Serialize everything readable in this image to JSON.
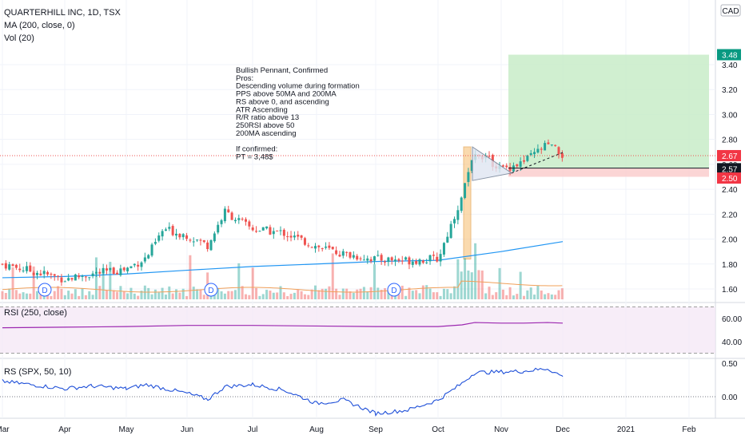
{
  "legend": {
    "symbol": "QUARTERHILL INC, 1D, TSX",
    "ma": "MA (200, close, 0)",
    "vol": "Vol (20)"
  },
  "currency": "CAD",
  "annotation": [
    "Bullish Pennant, Confirmed",
    "Pros:",
    "Descending volume during formation",
    "PPS above 50MA and 200MA",
    "RS above 0, and ascending",
    "ATR Ascending",
    "R/R ratio above 13",
    "250RSI above 50",
    "200MA ascending",
    "",
    "If confirmed:",
    "PT = 3,48$"
  ],
  "price_axis": {
    "ticks": [
      "3.40",
      "3.20",
      "3.00",
      "2.80",
      "2.60",
      "2.40",
      "2.20",
      "2.00",
      "1.80",
      "1.60"
    ],
    "badges": [
      {
        "label": "3.48",
        "value": 3.48,
        "color": "#089981"
      },
      {
        "label": "2.67",
        "value": 2.67,
        "color": "#f23645"
      },
      {
        "label": "2.57",
        "value": 2.57,
        "color": "#131722"
      },
      {
        "label": "2.50",
        "value": 2.5,
        "color": "#f23645"
      }
    ]
  },
  "rsi_panel": {
    "title": "RSI (250, close)",
    "ticks": [
      "60.00",
      "40.00"
    ]
  },
  "rs_panel": {
    "title": "RS (SPX, 50, 10)",
    "ticks": [
      "0.50",
      "0.00"
    ]
  },
  "time_axis": [
    "Mar",
    "Apr",
    "May",
    "Jun",
    "Jul",
    "Aug",
    "Sep",
    "Oct",
    "Nov",
    "Dec",
    "2021",
    "Feb"
  ],
  "dividend_marker": "D",
  "colors": {
    "up": "#26a69a",
    "down": "#ef5350",
    "ma": "#2196f3",
    "vol_ma": "#f0a05a",
    "rsi": "#9c27b0",
    "rs": "#1e4fd8",
    "target_zone": "#c8ecc8",
    "stop_zone": "#fbd0d0",
    "flagpole": "#f7c27a"
  },
  "chart_data": [
    {
      "type": "candlestick",
      "title": "QUARTERHILL INC, 1D, TSX",
      "ylim": [
        1.52,
        3.52
      ],
      "x": [
        "Mar",
        "Apr",
        "May",
        "Jun",
        "Jul",
        "Aug",
        "Sep",
        "Oct",
        "Nov",
        "Dec",
        "2021",
        "Feb"
      ],
      "price_path": [
        [
          "Mar",
          1.8
        ],
        [
          "Apr",
          1.68
        ],
        [
          "Apr-mid",
          1.72
        ],
        [
          "May",
          1.76
        ],
        [
          "May-mid",
          1.85
        ],
        [
          "May-late",
          2.08
        ],
        [
          "Jun",
          2.03
        ],
        [
          "Jun-mid",
          1.95
        ],
        [
          "Jun-late",
          2.22
        ],
        [
          "Jul",
          2.08
        ],
        [
          "Jul-mid",
          2.05
        ],
        [
          "Aug",
          1.94
        ],
        [
          "Aug-mid",
          1.88
        ],
        [
          "Sep",
          1.84
        ],
        [
          "Sep-mid",
          1.83
        ],
        [
          "Oct",
          1.84
        ],
        [
          "Oct-mid",
          2.35
        ],
        [
          "Oct-late",
          2.72
        ],
        [
          "Nov",
          2.56
        ],
        [
          "Nov-mid",
          2.62
        ],
        [
          "Nov-late",
          2.76
        ],
        [
          "Dec",
          2.67
        ]
      ],
      "moving_average_200": [
        [
          "Mar",
          1.69
        ],
        [
          "Apr",
          1.7
        ],
        [
          "May",
          1.72
        ],
        [
          "Jun",
          1.75
        ],
        [
          "Jul",
          1.78
        ],
        [
          "Aug",
          1.8
        ],
        [
          "Sep",
          1.82
        ],
        [
          "Oct",
          1.83
        ],
        [
          "Nov",
          1.9
        ],
        [
          "Dec",
          1.98
        ]
      ],
      "reference_lines": {
        "last_close": 2.67,
        "entry": 2.57,
        "stop": 2.5,
        "target": 3.48
      },
      "target_zone": [
        2.57,
        3.48
      ],
      "stop_zone": [
        2.5,
        2.57
      ]
    },
    {
      "type": "line",
      "title": "RSI (250, close)",
      "ylim": [
        30,
        70
      ],
      "bands": [
        70,
        30
      ],
      "values": [
        [
          "Mar",
          52
        ],
        [
          "Apr",
          52.5
        ],
        [
          "May",
          53
        ],
        [
          "Jun",
          54
        ],
        [
          "Jul",
          54
        ],
        [
          "Aug",
          53.5
        ],
        [
          "Sep",
          53
        ],
        [
          "Oct",
          53
        ],
        [
          "Oct-mid",
          54.5
        ],
        [
          "Oct-late",
          56.5
        ],
        [
          "Nov",
          56
        ],
        [
          "Nov-mid",
          56
        ],
        [
          "Nov-late",
          56.5
        ],
        [
          "Dec",
          56
        ]
      ]
    },
    {
      "type": "line",
      "title": "RS (SPX, 50, 10)",
      "ylim": [
        -0.32,
        0.55
      ],
      "values": [
        [
          "Mar",
          0.23
        ],
        [
          "Apr",
          0.12
        ],
        [
          "Apr-mid",
          0.16
        ],
        [
          "May",
          0.12
        ],
        [
          "May-mid",
          0.18
        ],
        [
          "Jun",
          0.05
        ],
        [
          "Jun-mid",
          -0.04
        ],
        [
          "Jun-late",
          0.15
        ],
        [
          "Jul",
          0.18
        ],
        [
          "Jul-mid",
          0.1
        ],
        [
          "Aug",
          -0.1
        ],
        [
          "Aug-mid",
          -0.05
        ],
        [
          "Sep",
          -0.25
        ],
        [
          "Sep-mid",
          -0.2
        ],
        [
          "Oct",
          -0.05
        ],
        [
          "Oct-mid",
          0.2
        ],
        [
          "Oct-late",
          0.36
        ],
        [
          "Nov",
          0.37
        ],
        [
          "Nov-mid",
          0.38
        ],
        [
          "Nov-late",
          0.42
        ],
        [
          "Dec",
          0.3
        ]
      ]
    }
  ]
}
